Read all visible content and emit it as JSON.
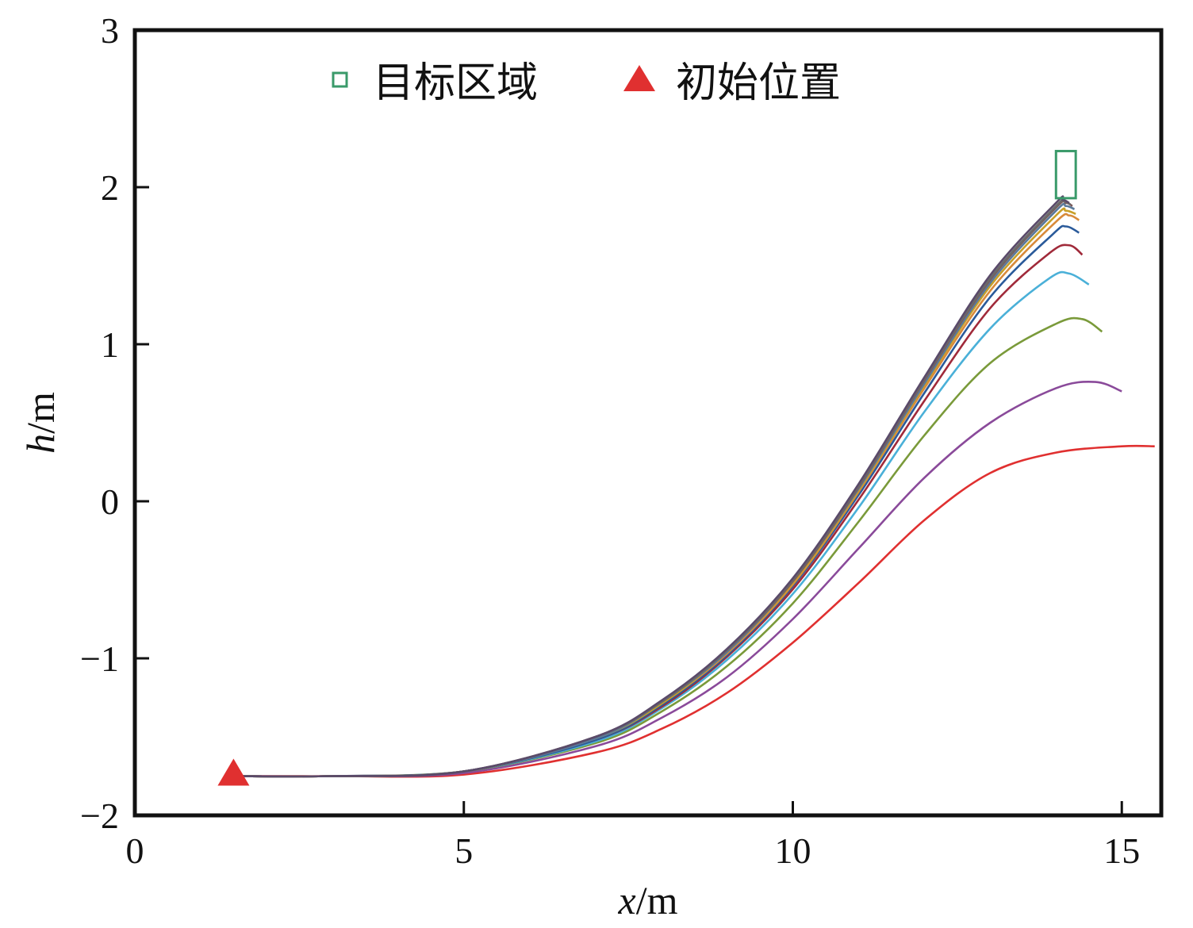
{
  "chart_data": {
    "type": "line",
    "xlabel": {
      "var": "x",
      "unit": "/m"
    },
    "ylabel": {
      "var": "h",
      "unit": "/m"
    },
    "xlim": [
      0,
      15.6
    ],
    "ylim": [
      -2,
      3
    ],
    "xticks": [
      0,
      5,
      10,
      15
    ],
    "yticks": [
      -2,
      -1,
      0,
      1,
      2,
      3
    ],
    "xtick_labels": [
      "0",
      "5",
      "10",
      "15"
    ],
    "ytick_labels": [
      "−2",
      "−1",
      "0",
      "1",
      "2",
      "3"
    ],
    "grid": false,
    "legend": {
      "placement": "top-center",
      "entries": [
        {
          "label": "目标区域",
          "marker": "open-square",
          "color": "#3a9a6a"
        },
        {
          "label": "初始位置",
          "marker": "filled-triangle",
          "color": "#e03030"
        }
      ]
    },
    "initial_position": {
      "x": 1.5,
      "y": -1.75
    },
    "target_region": {
      "x": [
        14.0,
        14.3
      ],
      "y": [
        1.93,
        2.23
      ]
    },
    "series": [
      {
        "color": "#e03030",
        "values": [
          [
            1.5,
            -1.75
          ],
          [
            3,
            -1.75
          ],
          [
            5,
            -1.74
          ],
          [
            7,
            -1.6
          ],
          [
            8,
            -1.45
          ],
          [
            9,
            -1.22
          ],
          [
            10,
            -0.9
          ],
          [
            11,
            -0.52
          ],
          [
            12,
            -0.12
          ],
          [
            13,
            0.18
          ],
          [
            14,
            0.31
          ],
          [
            15,
            0.35
          ],
          [
            15.5,
            0.35
          ]
        ]
      },
      {
        "color": "#8a4a9a",
        "values": [
          [
            1.5,
            -1.75
          ],
          [
            3,
            -1.75
          ],
          [
            5,
            -1.73
          ],
          [
            7,
            -1.56
          ],
          [
            8,
            -1.38
          ],
          [
            9,
            -1.12
          ],
          [
            10,
            -0.75
          ],
          [
            11,
            -0.3
          ],
          [
            12,
            0.15
          ],
          [
            13,
            0.5
          ],
          [
            14,
            0.72
          ],
          [
            14.6,
            0.76
          ],
          [
            15,
            0.7
          ]
        ]
      },
      {
        "color": "#7a9a3a",
        "values": [
          [
            1.5,
            -1.75
          ],
          [
            3,
            -1.75
          ],
          [
            5,
            -1.72
          ],
          [
            7,
            -1.54
          ],
          [
            8,
            -1.34
          ],
          [
            9,
            -1.05
          ],
          [
            10,
            -0.65
          ],
          [
            11,
            -0.13
          ],
          [
            12,
            0.42
          ],
          [
            13,
            0.88
          ],
          [
            14,
            1.13
          ],
          [
            14.4,
            1.16
          ],
          [
            14.7,
            1.08
          ]
        ]
      },
      {
        "color": "#4ab0d8",
        "values": [
          [
            1.5,
            -1.75
          ],
          [
            3,
            -1.75
          ],
          [
            5,
            -1.72
          ],
          [
            7,
            -1.53
          ],
          [
            8,
            -1.32
          ],
          [
            9,
            -1.01
          ],
          [
            10,
            -0.59
          ],
          [
            11,
            -0.04
          ],
          [
            12,
            0.57
          ],
          [
            13,
            1.1
          ],
          [
            13.9,
            1.42
          ],
          [
            14.2,
            1.45
          ],
          [
            14.5,
            1.38
          ]
        ]
      },
      {
        "color": "#a02a3a",
        "values": [
          [
            1.5,
            -1.75
          ],
          [
            3,
            -1.75
          ],
          [
            5,
            -1.72
          ],
          [
            7,
            -1.52
          ],
          [
            8,
            -1.31
          ],
          [
            9,
            -0.99
          ],
          [
            10,
            -0.56
          ],
          [
            11,
            0.01
          ],
          [
            12,
            0.64
          ],
          [
            13,
            1.23
          ],
          [
            13.9,
            1.58
          ],
          [
            14.2,
            1.63
          ],
          [
            14.4,
            1.57
          ]
        ]
      },
      {
        "color": "#2a5a9a",
        "values": [
          [
            1.5,
            -1.75
          ],
          [
            3,
            -1.75
          ],
          [
            5,
            -1.72
          ],
          [
            7,
            -1.52
          ],
          [
            8,
            -1.3
          ],
          [
            9,
            -0.98
          ],
          [
            10,
            -0.54
          ],
          [
            11,
            0.04
          ],
          [
            12,
            0.69
          ],
          [
            13,
            1.3
          ],
          [
            13.95,
            1.7
          ],
          [
            14.15,
            1.75
          ],
          [
            14.35,
            1.71
          ]
        ]
      },
      {
        "color": "#d88a3a",
        "values": [
          [
            1.5,
            -1.75
          ],
          [
            3,
            -1.75
          ],
          [
            5,
            -1.72
          ],
          [
            7,
            -1.51
          ],
          [
            8,
            -1.29
          ],
          [
            9,
            -0.97
          ],
          [
            10,
            -0.53
          ],
          [
            11,
            0.06
          ],
          [
            12,
            0.72
          ],
          [
            13,
            1.34
          ],
          [
            14,
            1.78
          ],
          [
            14.2,
            1.82
          ],
          [
            14.35,
            1.79
          ]
        ]
      },
      {
        "color": "#c8a028",
        "values": [
          [
            1.5,
            -1.75
          ],
          [
            3,
            -1.75
          ],
          [
            5,
            -1.72
          ],
          [
            7,
            -1.51
          ],
          [
            8,
            -1.29
          ],
          [
            9,
            -0.96
          ],
          [
            10,
            -0.52
          ],
          [
            11,
            0.07
          ],
          [
            12,
            0.74
          ],
          [
            13,
            1.37
          ],
          [
            14,
            1.82
          ],
          [
            14.15,
            1.85
          ],
          [
            14.3,
            1.83
          ]
        ]
      },
      {
        "color": "#5a7a9a",
        "values": [
          [
            1.5,
            -1.75
          ],
          [
            3,
            -1.75
          ],
          [
            5,
            -1.72
          ],
          [
            7,
            -1.51
          ],
          [
            8,
            -1.28
          ],
          [
            9,
            -0.96
          ],
          [
            10,
            -0.51
          ],
          [
            11,
            0.08
          ],
          [
            12,
            0.75
          ],
          [
            13,
            1.39
          ],
          [
            14,
            1.85
          ],
          [
            14.15,
            1.88
          ],
          [
            14.28,
            1.86
          ]
        ]
      },
      {
        "color": "#7a5a5a",
        "values": [
          [
            1.5,
            -1.75
          ],
          [
            3,
            -1.75
          ],
          [
            5,
            -1.72
          ],
          [
            7,
            -1.5
          ],
          [
            8,
            -1.28
          ],
          [
            9,
            -0.95
          ],
          [
            10,
            -0.51
          ],
          [
            11,
            0.09
          ],
          [
            12,
            0.77
          ],
          [
            13,
            1.41
          ],
          [
            14,
            1.87
          ],
          [
            14.15,
            1.9
          ],
          [
            14.25,
            1.88
          ]
        ]
      },
      {
        "color": "#6a6a6a",
        "values": [
          [
            1.5,
            -1.75
          ],
          [
            3,
            -1.75
          ],
          [
            5,
            -1.72
          ],
          [
            7,
            -1.5
          ],
          [
            8,
            -1.28
          ],
          [
            9,
            -0.95
          ],
          [
            10,
            -0.5
          ],
          [
            11,
            0.1
          ],
          [
            12,
            0.78
          ],
          [
            13,
            1.42
          ],
          [
            14,
            1.88
          ],
          [
            14.12,
            1.91
          ],
          [
            14.22,
            1.89
          ]
        ]
      },
      {
        "color": "#5a4a6a",
        "values": [
          [
            1.5,
            -1.75
          ],
          [
            3,
            -1.75
          ],
          [
            5,
            -1.72
          ],
          [
            7,
            -1.5
          ],
          [
            8,
            -1.27
          ],
          [
            9,
            -0.94
          ],
          [
            10,
            -0.49
          ],
          [
            11,
            0.11
          ],
          [
            12,
            0.79
          ],
          [
            13,
            1.44
          ],
          [
            14,
            1.9
          ],
          [
            14.1,
            1.92
          ],
          [
            14.2,
            1.9
          ]
        ]
      }
    ]
  }
}
